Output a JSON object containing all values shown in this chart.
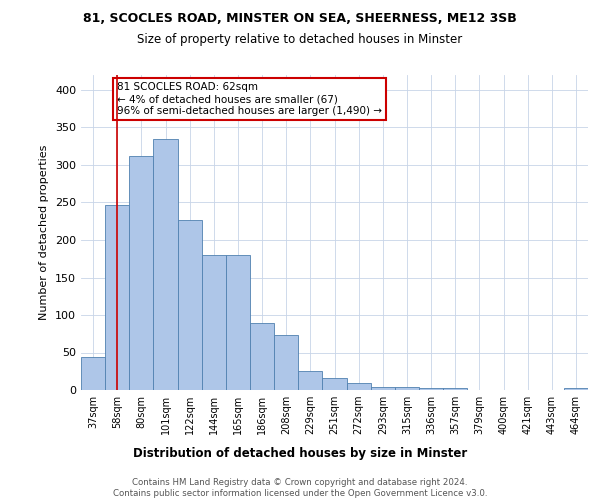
{
  "title1": "81, SCOCLES ROAD, MINSTER ON SEA, SHEERNESS, ME12 3SB",
  "title2": "Size of property relative to detached houses in Minster",
  "xlabel": "Distribution of detached houses by size in Minster",
  "ylabel": "Number of detached properties",
  "categories": [
    "37sqm",
    "58sqm",
    "80sqm",
    "101sqm",
    "122sqm",
    "144sqm",
    "165sqm",
    "186sqm",
    "208sqm",
    "229sqm",
    "251sqm",
    "272sqm",
    "293sqm",
    "315sqm",
    "336sqm",
    "357sqm",
    "379sqm",
    "400sqm",
    "421sqm",
    "443sqm",
    "464sqm"
  ],
  "values": [
    44,
    246,
    312,
    335,
    227,
    180,
    180,
    90,
    73,
    26,
    16,
    9,
    4,
    4,
    3,
    3,
    0,
    0,
    0,
    0,
    3
  ],
  "bar_color": "#aec6e8",
  "bar_edge_color": "#5080b0",
  "vline_x": 1,
  "vline_color": "#cc0000",
  "annotation_text": "81 SCOCLES ROAD: 62sqm\n← 4% of detached houses are smaller (67)\n96% of semi-detached houses are larger (1,490) →",
  "annotation_box_color": "#ffffff",
  "annotation_box_edge": "#cc0000",
  "ylim": [
    0,
    420
  ],
  "yticks": [
    0,
    50,
    100,
    150,
    200,
    250,
    300,
    350,
    400
  ],
  "footnote": "Contains HM Land Registry data © Crown copyright and database right 2024.\nContains public sector information licensed under the Open Government Licence v3.0.",
  "background_color": "#ffffff",
  "grid_color": "#c8d4e8"
}
